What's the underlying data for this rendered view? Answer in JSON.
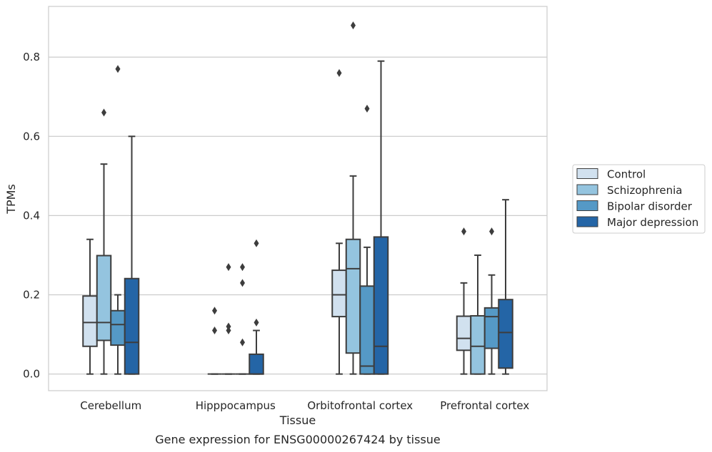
{
  "chart_data": {
    "type": "box",
    "title": "",
    "caption": "Gene expression for ENSG00000267424 by tissue",
    "xlabel": "Tissue",
    "ylabel": "TPMs",
    "ylim": [
      -0.042,
      0.928
    ],
    "yticks": [
      "0.0",
      "0.2",
      "0.4",
      "0.6",
      "0.8"
    ],
    "grid": "horizontal",
    "legend_position": "right",
    "categories": [
      "Cerebellum",
      "Hipppocampus",
      "Orbitofrontal cortex",
      "Prefrontal cortex"
    ],
    "series": [
      {
        "name": "Control",
        "color": "#d1e1ef",
        "boxes": [
          {
            "whisker_low": 0.0,
            "q1": 0.07,
            "median": 0.13,
            "q3": 0.197,
            "whisker_high": 0.34,
            "outliers": []
          },
          {
            "whisker_low": 0.0,
            "q1": 0.0,
            "median": 0.0,
            "q3": 0.0,
            "whisker_high": 0.0,
            "outliers": [
              0.11,
              0.16
            ]
          },
          {
            "whisker_low": 0.0,
            "q1": 0.145,
            "median": 0.2,
            "q3": 0.262,
            "whisker_high": 0.33,
            "outliers": [
              0.76
            ]
          },
          {
            "whisker_low": 0.0,
            "q1": 0.06,
            "median": 0.09,
            "q3": 0.146,
            "whisker_high": 0.23,
            "outliers": [
              0.36
            ]
          }
        ]
      },
      {
        "name": "Schizophrenia",
        "color": "#94c4df",
        "boxes": [
          {
            "whisker_low": 0.0,
            "q1": 0.085,
            "median": 0.13,
            "q3": 0.299,
            "whisker_high": 0.53,
            "outliers": [
              0.66
            ]
          },
          {
            "whisker_low": 0.0,
            "q1": 0.0,
            "median": 0.0,
            "q3": 0.0,
            "whisker_high": 0.0,
            "outliers": [
              0.11,
              0.12,
              0.27
            ]
          },
          {
            "whisker_low": 0.0,
            "q1": 0.053,
            "median": 0.266,
            "q3": 0.34,
            "whisker_high": 0.5,
            "outliers": [
              0.88
            ]
          },
          {
            "whisker_low": 0.0,
            "q1": 0.0,
            "median": 0.07,
            "q3": 0.147,
            "whisker_high": 0.3,
            "outliers": []
          }
        ]
      },
      {
        "name": "Bipolar disorder",
        "color": "#5599c6",
        "boxes": [
          {
            "whisker_low": 0.0,
            "q1": 0.073,
            "median": 0.125,
            "q3": 0.16,
            "whisker_high": 0.2,
            "outliers": [
              0.77
            ]
          },
          {
            "whisker_low": 0.0,
            "q1": 0.0,
            "median": 0.0,
            "q3": 0.0,
            "whisker_high": 0.0,
            "outliers": [
              0.08,
              0.23,
              0.27
            ]
          },
          {
            "whisker_low": 0.0,
            "q1": 0.0,
            "median": 0.02,
            "q3": 0.222,
            "whisker_high": 0.32,
            "outliers": [
              0.67
            ]
          },
          {
            "whisker_low": 0.0,
            "q1": 0.065,
            "median": 0.145,
            "q3": 0.167,
            "whisker_high": 0.25,
            "outliers": [
              0.36
            ]
          }
        ]
      },
      {
        "name": "Major depression",
        "color": "#2465a6",
        "boxes": [
          {
            "whisker_low": 0.0,
            "q1": 0.0,
            "median": 0.08,
            "q3": 0.241,
            "whisker_high": 0.6,
            "outliers": []
          },
          {
            "whisker_low": 0.0,
            "q1": 0.0,
            "median": 0.0,
            "q3": 0.05,
            "whisker_high": 0.11,
            "outliers": [
              0.13,
              0.33
            ]
          },
          {
            "whisker_low": 0.0,
            "q1": 0.0,
            "median": 0.07,
            "q3": 0.346,
            "whisker_high": 0.79,
            "outliers": []
          },
          {
            "whisker_low": 0.0,
            "q1": 0.015,
            "median": 0.105,
            "q3": 0.188,
            "whisker_high": 0.44,
            "outliers": []
          }
        ]
      }
    ]
  }
}
